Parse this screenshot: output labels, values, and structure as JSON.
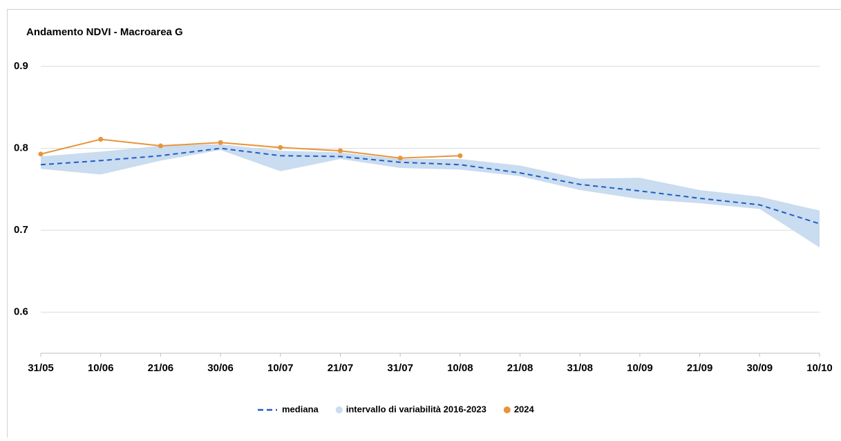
{
  "chart_data": {
    "type": "line",
    "title": "Andamento NDVI - Macroarea G",
    "categories": [
      "31/05",
      "10/06",
      "21/06",
      "30/06",
      "10/07",
      "21/07",
      "31/07",
      "10/08",
      "21/08",
      "31/08",
      "10/09",
      "21/09",
      "30/09",
      "10/10"
    ],
    "ylim": [
      0.55,
      0.9
    ],
    "yticks": [
      0.6,
      0.7,
      0.8,
      0.9
    ],
    "grid": true,
    "series": [
      {
        "name": "mediana",
        "color": "#1f5bc6",
        "dashed": true,
        "values": [
          0.78,
          0.785,
          0.791,
          0.8,
          0.791,
          0.79,
          0.783,
          0.78,
          0.77,
          0.756,
          0.748,
          0.739,
          0.731,
          0.708
        ]
      },
      {
        "name": "intervallo di variabilità 2016-2023",
        "color": "#c9dcf0",
        "band": true,
        "low": [
          0.775,
          0.768,
          0.785,
          0.798,
          0.772,
          0.787,
          0.776,
          0.774,
          0.766,
          0.749,
          0.738,
          0.733,
          0.726,
          0.679
        ],
        "high": [
          0.79,
          0.796,
          0.803,
          0.805,
          0.797,
          0.795,
          0.787,
          0.787,
          0.779,
          0.763,
          0.764,
          0.749,
          0.741,
          0.724
        ]
      },
      {
        "name": "2024",
        "color": "#e8943a",
        "markers": true,
        "values": [
          0.793,
          0.811,
          0.803,
          0.807,
          0.801,
          0.797,
          0.788,
          0.791,
          null,
          null,
          null,
          null,
          null,
          null
        ]
      }
    ]
  }
}
